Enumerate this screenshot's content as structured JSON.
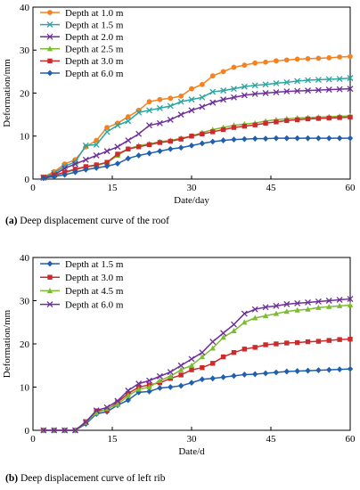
{
  "chart_data": [
    {
      "type": "line",
      "caption_tag": "(a)",
      "caption_text": " Deep displacement curve of the roof",
      "xlabel": "Date/day",
      "ylabel": "Deformation/mm",
      "xlim": [
        0,
        60
      ],
      "ylim": [
        0,
        40
      ],
      "xticks": [
        0,
        15,
        30,
        45,
        60
      ],
      "yticks": [
        0,
        10,
        20,
        30,
        40
      ],
      "grid": false,
      "legend_position": "top-left",
      "x": [
        2,
        4,
        6,
        8,
        10,
        12,
        14,
        16,
        18,
        20,
        22,
        24,
        26,
        28,
        30,
        32,
        34,
        36,
        38,
        40,
        42,
        44,
        46,
        48,
        50,
        52,
        54,
        56,
        58,
        60
      ],
      "series": [
        {
          "name": "Depth at 1.0 m",
          "color": "#f5821f",
          "marker": "circle",
          "values": [
            0.5,
            1.7,
            3.5,
            4.5,
            7.5,
            9.0,
            12.0,
            13.0,
            14.5,
            16.0,
            18.0,
            18.5,
            18.8,
            19.3,
            21.0,
            22.0,
            24.0,
            25.0,
            26.0,
            26.5,
            27.0,
            27.2,
            27.5,
            27.7,
            27.9,
            28.0,
            28.1,
            28.2,
            28.4,
            28.5
          ]
        },
        {
          "name": "Depth at 1.5 m",
          "color": "#2aa6a0",
          "marker": "x",
          "values": [
            0.4,
            1.4,
            3.0,
            4.0,
            7.8,
            8.0,
            11.0,
            12.5,
            13.5,
            15.5,
            16.0,
            16.5,
            17.0,
            18.0,
            18.5,
            19.0,
            20.3,
            20.6,
            21.0,
            21.5,
            21.8,
            22.0,
            22.3,
            22.5,
            22.8,
            23.0,
            23.1,
            23.2,
            23.3,
            23.5
          ]
        },
        {
          "name": "Depth at 2.0 m",
          "color": "#6e2f9b",
          "marker": "x",
          "values": [
            0.3,
            1.0,
            2.5,
            3.5,
            4.5,
            5.5,
            6.5,
            7.5,
            9.0,
            10.5,
            12.5,
            13.0,
            13.8,
            15.0,
            16.0,
            16.8,
            17.8,
            18.5,
            19.0,
            19.5,
            19.8,
            20.0,
            20.2,
            20.4,
            20.5,
            20.6,
            20.7,
            20.8,
            20.9,
            21.0
          ]
        },
        {
          "name": "Depth at 2.5 m",
          "color": "#7dbb33",
          "marker": "triangle",
          "values": [
            0.3,
            0.8,
            1.5,
            2.2,
            2.8,
            3.2,
            3.8,
            5.5,
            7.0,
            7.8,
            8.2,
            8.7,
            9.0,
            9.5,
            10.0,
            10.8,
            11.5,
            12.0,
            12.5,
            12.8,
            13.0,
            13.5,
            13.8,
            14.0,
            14.2,
            14.3,
            14.4,
            14.5,
            14.6,
            14.7
          ]
        },
        {
          "name": "Depth at 3.0 m",
          "color": "#cc2b2b",
          "marker": "square",
          "values": [
            0.4,
            0.9,
            1.6,
            2.3,
            2.9,
            3.3,
            3.9,
            5.8,
            7.0,
            7.5,
            8.0,
            8.5,
            8.8,
            9.3,
            10.0,
            10.5,
            11.0,
            11.5,
            12.0,
            12.3,
            12.6,
            13.0,
            13.3,
            13.6,
            13.8,
            14.0,
            14.1,
            14.2,
            14.3,
            14.4
          ]
        },
        {
          "name": "Depth at 6.0 m",
          "color": "#1f5fb0",
          "marker": "diamond",
          "values": [
            0.2,
            0.6,
            1.0,
            1.6,
            2.2,
            2.6,
            3.0,
            3.6,
            4.8,
            5.5,
            6.0,
            6.5,
            7.0,
            7.3,
            7.8,
            8.3,
            8.7,
            9.0,
            9.2,
            9.3,
            9.4,
            9.4,
            9.5,
            9.5,
            9.5,
            9.5,
            9.5,
            9.5,
            9.5,
            9.5
          ]
        }
      ]
    },
    {
      "type": "line",
      "caption_tag": "(b)",
      "caption_text": " Deep displacement curve of left rib",
      "xlabel": "Date/d",
      "ylabel": "Deformation/mm",
      "xlim": [
        0,
        60
      ],
      "ylim": [
        0,
        40
      ],
      "xticks": [
        0,
        15,
        30,
        45,
        60
      ],
      "yticks": [
        0,
        10,
        20,
        30,
        40
      ],
      "grid": false,
      "legend_position": "top-left",
      "x": [
        2,
        4,
        6,
        8,
        10,
        12,
        14,
        16,
        18,
        20,
        22,
        24,
        26,
        28,
        30,
        32,
        34,
        36,
        38,
        40,
        42,
        44,
        46,
        48,
        50,
        52,
        54,
        56,
        58,
        60
      ],
      "series": [
        {
          "name": "Depth at 1.5 m",
          "color": "#1f5fb0",
          "marker": "diamond",
          "values": [
            0,
            0,
            0,
            0,
            1.5,
            3.8,
            4.3,
            5.8,
            7.0,
            8.8,
            9.0,
            9.8,
            10.0,
            10.3,
            11.0,
            11.8,
            12.0,
            12.3,
            12.6,
            12.9,
            13.0,
            13.2,
            13.4,
            13.6,
            13.7,
            13.8,
            13.9,
            14.0,
            14.1,
            14.2
          ]
        },
        {
          "name": "Depth at 3.0 m",
          "color": "#cc2b2b",
          "marker": "square",
          "values": [
            0,
            0,
            0,
            0,
            2.0,
            4.5,
            4.7,
            6.5,
            8.5,
            10.0,
            10.5,
            11.0,
            12.0,
            12.8,
            14.0,
            14.5,
            15.5,
            17.0,
            18.0,
            18.8,
            19.2,
            19.8,
            20.0,
            20.2,
            20.3,
            20.5,
            20.6,
            20.8,
            21.0,
            21.1
          ]
        },
        {
          "name": "Depth at 4.5 m",
          "color": "#7dbb33",
          "marker": "triangle",
          "values": [
            0,
            0,
            0,
            0,
            1.8,
            4.0,
            5.0,
            6.0,
            8.0,
            9.5,
            10.0,
            11.5,
            12.5,
            14.0,
            15.0,
            17.0,
            19.0,
            21.5,
            23.0,
            25.0,
            26.0,
            26.5,
            27.0,
            27.5,
            27.8,
            28.0,
            28.4,
            28.6,
            28.8,
            29.0
          ]
        },
        {
          "name": "Depth at 6.0 m",
          "color": "#6e2f9b",
          "marker": "x",
          "values": [
            0,
            0,
            0,
            0,
            1.9,
            4.6,
            5.3,
            6.8,
            9.2,
            10.8,
            11.5,
            12.5,
            13.5,
            15.0,
            16.5,
            18.0,
            20.5,
            22.5,
            24.5,
            27.0,
            28.0,
            28.5,
            28.8,
            29.2,
            29.4,
            29.6,
            29.8,
            30.0,
            30.2,
            30.4
          ]
        }
      ]
    }
  ]
}
